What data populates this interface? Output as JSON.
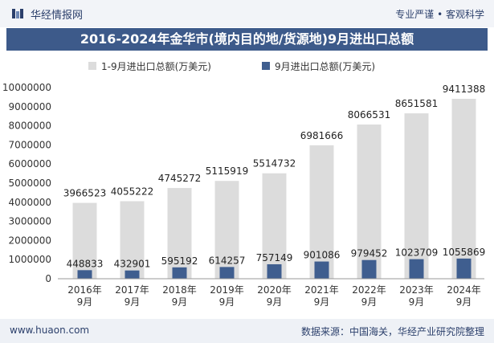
{
  "header": {
    "brand": "华经情报网",
    "tagline": "专业严谨 • 客观科学"
  },
  "title": "2016-2024年金华市(境内目的地/货源地)9月进出口总额",
  "colors": {
    "series1": "#dcdcdc",
    "series2": "#3f5e8f",
    "title_bg": "#3d5a8a",
    "text": "#2b3f6b"
  },
  "chart_data": {
    "type": "bar",
    "categories": [
      "2016年\n9月",
      "2017年\n9月",
      "2018年\n9月",
      "2019年\n9月",
      "2020年\n9月",
      "2021年\n9月",
      "2022年\n9月",
      "2023年\n9月",
      "2024年\n9月"
    ],
    "series": [
      {
        "name": "1-9月进出口总额(万美元)",
        "values": [
          3966523,
          4055222,
          4745272,
          5115919,
          5514732,
          6981666,
          8066531,
          8651581,
          9411388
        ]
      },
      {
        "name": "9月进出口总额(万美元)",
        "values": [
          448833,
          432901,
          595192,
          614257,
          757149,
          901086,
          979452,
          1023709,
          1055869
        ]
      }
    ],
    "yticks": [
      "0",
      "1000000",
      "2000000",
      "3000000",
      "4000000",
      "5000000",
      "6000000",
      "7000000",
      "8000000",
      "9000000",
      "10000000"
    ],
    "ylim": [
      0,
      10000000
    ],
    "legend": "top-center"
  },
  "footer": {
    "site": "www.huaon.com",
    "source": "数据来源：中国海关，华经产业研究院整理"
  }
}
